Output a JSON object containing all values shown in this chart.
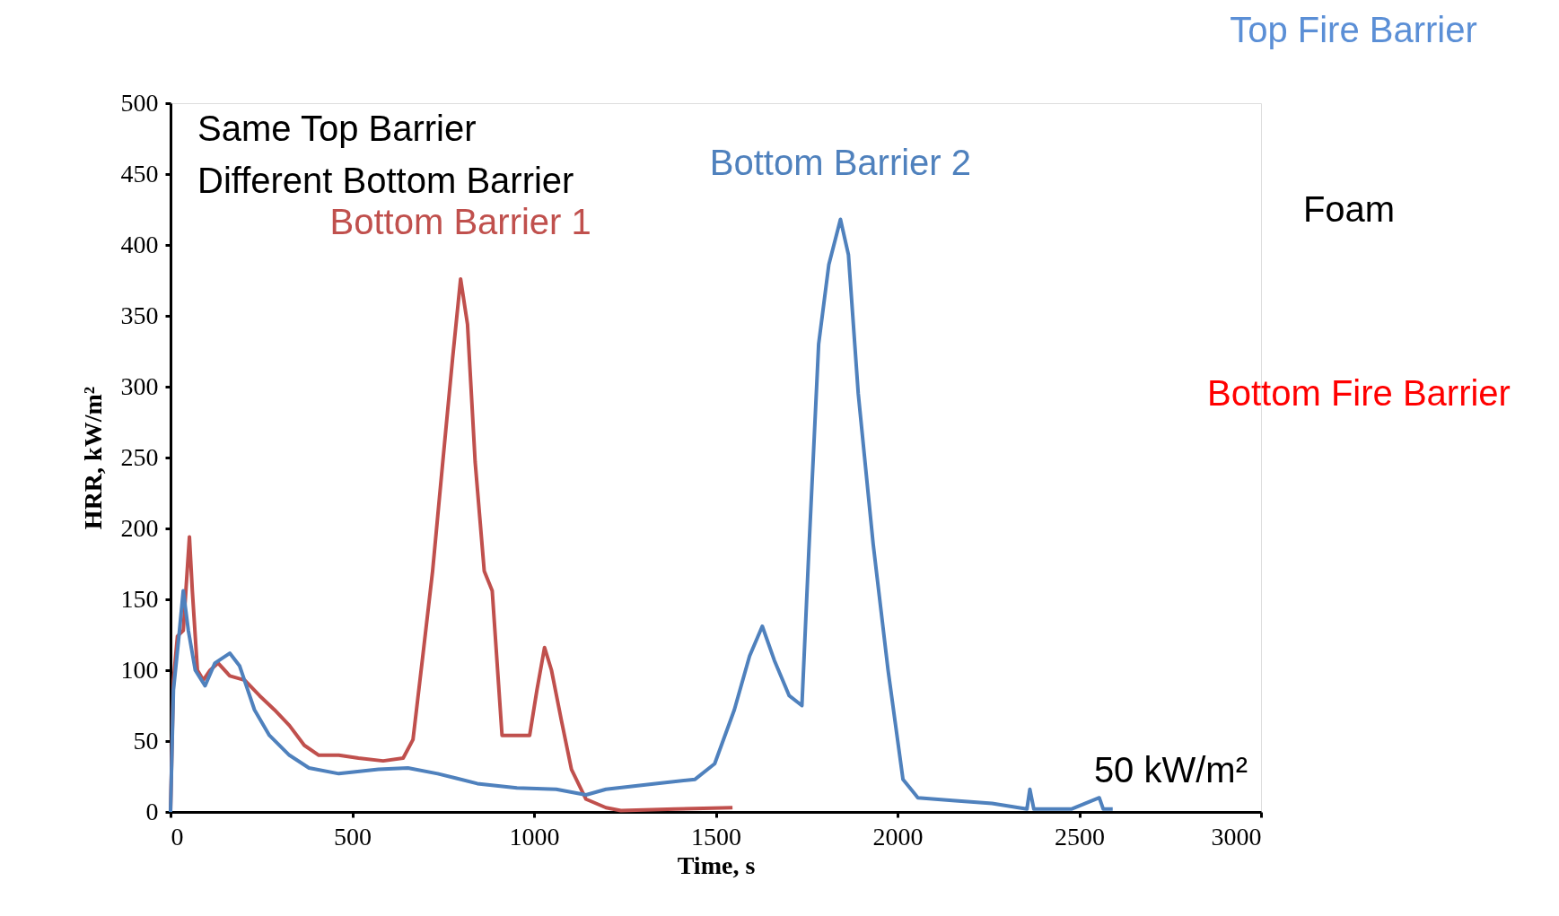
{
  "chart_data": {
    "type": "line",
    "xlabel": "Time, s",
    "ylabel": "HRR, kW/m²",
    "xlim": [
      0,
      3000
    ],
    "xticks": [
      0,
      500,
      1000,
      1500,
      2000,
      2500,
      3000
    ],
    "ylim": [
      0,
      500
    ],
    "yticks": [
      0,
      50,
      100,
      150,
      200,
      250,
      300,
      350,
      400,
      450,
      500
    ],
    "grid": false,
    "legend": false,
    "marker": "none",
    "line_style": "solid",
    "annotations": [
      "Same Top Barrier",
      "Different Bottom Barrier",
      "50 kW/m²",
      "Top Fire Barrier",
      "Foam",
      "Bottom Fire Barrier"
    ],
    "series": [
      {
        "name": "Bottom Barrier 1",
        "color": "#c0504d",
        "x": [
          0,
          8,
          19,
          35,
          52,
          60,
          74,
          90,
          109,
          131,
          163,
          204,
          245,
          286,
          327,
          368,
          408,
          463,
          517,
          585,
          640,
          667,
          694,
          721,
          749,
          776,
          798,
          817,
          838,
          863,
          885,
          912,
          953,
          988,
          1008,
          1029,
          1048,
          1075,
          1103,
          1143,
          1198,
          1239,
          1388,
          1546
        ],
        "values": [
          0,
          93,
          124,
          128,
          194,
          156,
          100,
          93,
          100,
          105,
          96,
          93,
          82,
          72,
          61,
          47,
          40,
          40,
          38,
          36,
          38,
          51,
          110,
          170,
          247,
          320,
          376,
          344,
          247,
          170,
          156,
          54,
          54,
          54,
          86,
          116,
          100,
          65,
          30,
          9,
          3,
          1,
          2,
          3
        ]
      },
      {
        "name": "Bottom Barrier 2",
        "color": "#4f81bd",
        "x": [
          0,
          8,
          22,
          35,
          49,
          68,
          95,
          122,
          163,
          190,
          231,
          272,
          327,
          381,
          463,
          572,
          653,
          735,
          844,
          953,
          1061,
          1143,
          1198,
          1334,
          1443,
          1497,
          1551,
          1593,
          1628,
          1661,
          1702,
          1737,
          1756,
          1783,
          1811,
          1843,
          1865,
          1892,
          1933,
          1974,
          2015,
          2056,
          2151,
          2260,
          2356,
          2364,
          2375,
          2478,
          2555,
          2566,
          2592
        ],
        "values": [
          0,
          86,
          121,
          156,
          128,
          100,
          89,
          105,
          112,
          103,
          72,
          54,
          40,
          31,
          27,
          30,
          31,
          27,
          20,
          17,
          16,
          12,
          16,
          20,
          23,
          34,
          72,
          110,
          131,
          107,
          82,
          75,
          184,
          330,
          386,
          418,
          393,
          295,
          189,
          100,
          23,
          10,
          8,
          6,
          2,
          16,
          2,
          2,
          10,
          2,
          2
        ]
      }
    ]
  }
}
